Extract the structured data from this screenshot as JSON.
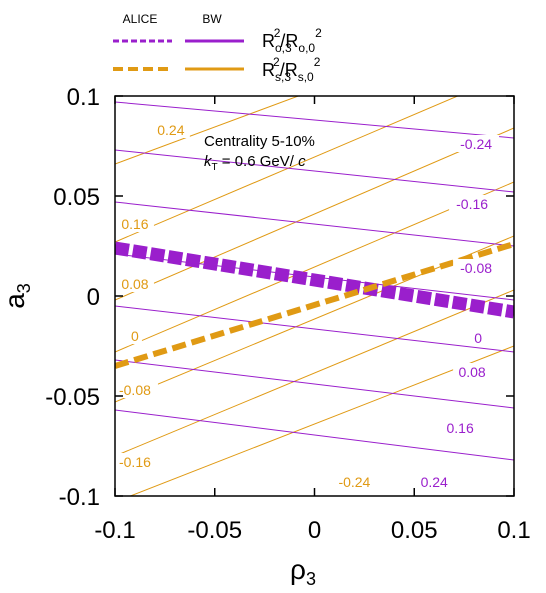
{
  "chart_data": {
    "type": "line",
    "xlabel_base": "ρ",
    "xlabel_sub": "3",
    "ylabel_base": "a",
    "ylabel_sub": "3",
    "xlim": [
      -0.1,
      0.1
    ],
    "ylim": [
      -0.1,
      0.1
    ],
    "xticks": [
      {
        "v": -0.1,
        "label": "-0.1"
      },
      {
        "v": -0.05,
        "label": "-0.05"
      },
      {
        "v": 0,
        "label": "0"
      },
      {
        "v": 0.05,
        "label": "0.05"
      },
      {
        "v": 0.1,
        "label": "0.1"
      }
    ],
    "yticks": [
      {
        "v": 0.1,
        "label": "0.1"
      },
      {
        "v": 0.05,
        "label": "0.05"
      },
      {
        "v": 0,
        "label": "0"
      },
      {
        "v": -0.05,
        "label": "-0.05"
      },
      {
        "v": -0.1,
        "label": "-0.1"
      }
    ],
    "annotation": {
      "line1": "Centrality 5-10%",
      "line2_k": "k",
      "line2_sub": "T",
      "line2_rest": " = 0.6 GeV/ ",
      "line2_c": "c"
    },
    "legend": {
      "col_alice": "ALICE",
      "col_bw": "BW",
      "row1": {
        "R": "R",
        "sub1": "o,3",
        "sup1": "2",
        "slash": "/",
        "sub2": "o,0",
        "sup2": "2"
      },
      "row2": {
        "R": "R",
        "sub1": "s,3",
        "sup1": "2",
        "slash": "/",
        "sub2": "s,0",
        "sup2": "2"
      }
    },
    "colors": {
      "out": "#9a1fcc",
      "side": "#e09a14"
    },
    "contours_out": [
      {
        "label": "-0.24",
        "y0": 0.097,
        "y1": 0.079,
        "lx": 0.081,
        "ly": 0.076
      },
      {
        "label": "-0.16",
        "y0": 0.073,
        "y1": 0.052,
        "lx": 0.079,
        "ly": 0.046
      },
      {
        "label": "-0.08",
        "y0": 0.047,
        "y1": 0.025,
        "lx": 0.081,
        "ly": 0.014
      },
      {
        "label": "0",
        "y0": 0.021,
        "y1": -0.002,
        "lx": 0.082,
        "ly": -0.021
      },
      {
        "label": "0.08",
        "y0": -0.005,
        "y1": -0.028,
        "lx": 0.079,
        "ly": -0.038
      },
      {
        "label": "0.16",
        "y0": -0.032,
        "y1": -0.056,
        "lx": 0.073,
        "ly": -0.066
      },
      {
        "label": "0.24",
        "y0": -0.057,
        "y1": -0.082,
        "lx": 0.06,
        "ly": -0.093
      }
    ],
    "contours_side": [
      {
        "label": "0.24",
        "y0": 0.066,
        "y1": 0.14,
        "lx": -0.072,
        "ly": 0.083
      },
      {
        "label": "0.16",
        "y0": 0.027,
        "y1": 0.112,
        "lx": -0.09,
        "ly": 0.036
      },
      {
        "label": "0.08",
        "y0": -0.002,
        "y1": 0.084,
        "lx": -0.09,
        "ly": 0.006
      },
      {
        "label": "0",
        "y0": -0.028,
        "y1": 0.057,
        "lx": -0.09,
        "ly": -0.02
      },
      {
        "label": "-0.08",
        "y0": -0.053,
        "y1": 0.03,
        "lx": -0.09,
        "ly": -0.047
      },
      {
        "label": "-0.16",
        "y0": -0.08,
        "y1": 0.003,
        "lx": -0.09,
        "ly": -0.083
      },
      {
        "label": "-0.24",
        "y0": -0.103,
        "y1": -0.025,
        "lx": 0.02,
        "ly": -0.093
      }
    ],
    "series": [
      {
        "name": "ALICE",
        "quantity": "out",
        "x": [
          -0.1,
          0.1
        ],
        "y": [
          0.024,
          -0.008
        ]
      },
      {
        "name": "ALICE",
        "quantity": "side",
        "x": [
          -0.1,
          0.1
        ],
        "y": [
          -0.035,
          0.026
        ]
      }
    ]
  }
}
